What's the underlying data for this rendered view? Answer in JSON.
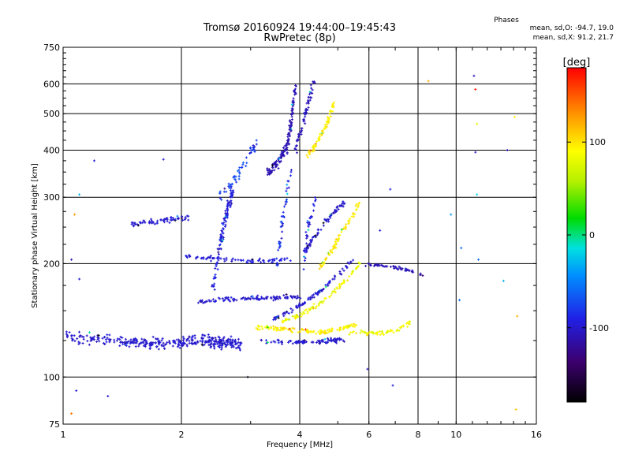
{
  "header": {
    "title_line1": "Tromsø 20160924 19:44:00–19:45:43",
    "title_line2": "RwPretec (8p)",
    "phase_title": "Phases",
    "phase_stat_o": "mean, sd,O: -94.7, 19.0",
    "phase_stat_x": "mean, sd,X:  91.2, 21.7"
  },
  "colorbar": {
    "label": "[deg]",
    "min": -180,
    "max": 180,
    "ticks": [
      {
        "value": 100,
        "label": "100"
      },
      {
        "value": 0,
        "label": "0"
      },
      {
        "value": -100,
        "label": "-100"
      }
    ]
  },
  "chart_data": {
    "type": "scatter",
    "xlabel": "Frequency [MHz]",
    "ylabel": "Stationary phase Virtual Height [km]",
    "xscale": "log",
    "yscale": "log",
    "xlim": [
      1,
      16
    ],
    "ylim": [
      75,
      750
    ],
    "grid": true,
    "color_encoding": "phase [deg]",
    "x_ticks": [
      {
        "value": 1,
        "label": "1"
      },
      {
        "value": 2,
        "label": "2"
      },
      {
        "value": 4,
        "label": "4"
      },
      {
        "value": 6,
        "label": "6"
      },
      {
        "value": 8,
        "label": "8"
      },
      {
        "value": 10,
        "label": "10"
      },
      {
        "value": 16,
        "label": "16"
      }
    ],
    "y_ticks": [
      {
        "value": 75,
        "label": "75"
      },
      {
        "value": 100,
        "label": "100"
      },
      {
        "value": 200,
        "label": "200"
      },
      {
        "value": 300,
        "label": "300"
      },
      {
        "value": 400,
        "label": "400"
      },
      {
        "value": 500,
        "label": "500"
      },
      {
        "value": 600,
        "label": "600"
      },
      {
        "value": 750,
        "label": "750"
      }
    ],
    "traces": [
      {
        "x": [
          1.02,
          1.2,
          1.45,
          1.7,
          1.95,
          2.2,
          2.45,
          2.65,
          2.85
        ],
        "y": [
          128,
          126,
          124,
          123,
          123,
          125,
          124,
          123,
          122
        ],
        "spread": 0.05,
        "n": 360,
        "phase_mean": -100,
        "phase_sd": 12
      },
      {
        "x": [
          2.2,
          2.5,
          2.8,
          3.1,
          3.4,
          3.7,
          4.0
        ],
        "y": [
          158,
          160,
          161,
          162,
          162,
          163,
          163
        ],
        "spread": 0.02,
        "n": 110,
        "phase_mean": -100,
        "phase_sd": 12
      },
      {
        "x": [
          1.5,
          1.7,
          1.9,
          2.1
        ],
        "y": [
          255,
          258,
          262,
          266
        ],
        "spread": 0.025,
        "n": 65,
        "phase_mean": -100,
        "phase_sd": 10
      },
      {
        "x": [
          2.05,
          2.3,
          2.6,
          2.9,
          3.2,
          3.5,
          3.8
        ],
        "y": [
          210,
          207,
          205,
          203,
          203,
          204,
          205
        ],
        "spread": 0.02,
        "n": 75,
        "phase_mean": -95,
        "phase_sd": 14
      },
      {
        "x": [
          2.4,
          2.5,
          2.6,
          2.7
        ],
        "y": [
          170,
          220,
          270,
          310
        ],
        "spread": 0.06,
        "n": 110,
        "phase_mean": -95,
        "phase_sd": 18
      },
      {
        "x": [
          2.5,
          2.7,
          2.9,
          3.1
        ],
        "y": [
          300,
          330,
          370,
          420
        ],
        "spread": 0.05,
        "n": 55,
        "phase_mean": -75,
        "phase_sd": 30
      },
      {
        "x": [
          3.3,
          3.5,
          3.7,
          3.8,
          3.9
        ],
        "y": [
          350,
          370,
          400,
          470,
          590
        ],
        "spread": 0.05,
        "n": 150,
        "phase_mean": -110,
        "phase_sd": 12
      },
      {
        "x": [
          3.9,
          4.05,
          4.2,
          4.35
        ],
        "y": [
          400,
          460,
          530,
          620
        ],
        "spread": 0.03,
        "n": 60,
        "phase_mean": -105,
        "phase_sd": 10
      },
      {
        "x": [
          4.2,
          4.45,
          4.7,
          4.9
        ],
        "y": [
          390,
          420,
          470,
          540
        ],
        "spread": 0.03,
        "n": 70,
        "phase_mean": 95,
        "phase_sd": 25
      },
      {
        "x": [
          3.1,
          3.5,
          3.9,
          4.3,
          4.7,
          5.1,
          5.6
        ],
        "y": [
          136,
          134,
          133,
          132,
          132,
          134,
          138
        ],
        "spread": 0.02,
        "n": 130,
        "phase_mean": 95,
        "phase_sd": 22
      },
      {
        "x": [
          3.2,
          3.6,
          4.0,
          4.4,
          4.8,
          5.2
        ],
        "y": [
          125,
          124,
          124,
          124,
          125,
          126
        ],
        "spread": 0.02,
        "n": 95,
        "phase_mean": -100,
        "phase_sd": 12
      },
      {
        "x": [
          3.4,
          3.8,
          4.2,
          4.6,
          5.0,
          5.5
        ],
        "y": [
          142,
          150,
          160,
          172,
          187,
          205
        ],
        "spread": 0.02,
        "n": 95,
        "phase_mean": -100,
        "phase_sd": 14
      },
      {
        "x": [
          3.6,
          4.0,
          4.4,
          4.8,
          5.2,
          5.7
        ],
        "y": [
          140,
          146,
          154,
          165,
          180,
          200
        ],
        "spread": 0.02,
        "n": 90,
        "phase_mean": 85,
        "phase_sd": 30
      },
      {
        "x": [
          4.0,
          4.3,
          4.6,
          4.9,
          5.2
        ],
        "y": [
          205,
          230,
          255,
          275,
          292
        ],
        "spread": 0.02,
        "n": 70,
        "phase_mean": -100,
        "phase_sd": 14
      },
      {
        "x": [
          4.5,
          4.8,
          5.1,
          5.4,
          5.7
        ],
        "y": [
          195,
          215,
          240,
          265,
          290
        ],
        "spread": 0.025,
        "n": 70,
        "phase_mean": 100,
        "phase_sd": 20
      },
      {
        "x": [
          5.8,
          6.3,
          6.8,
          7.3,
          7.8,
          8.2
        ],
        "y": [
          198,
          198,
          196,
          194,
          190,
          186
        ],
        "spread": 0.015,
        "n": 55,
        "phase_mean": -110,
        "phase_sd": 12
      },
      {
        "x": [
          5.3,
          5.9,
          6.5,
          7.1,
          7.6
        ],
        "y": [
          132,
          131,
          131,
          133,
          140
        ],
        "spread": 0.02,
        "n": 60,
        "phase_mean": 85,
        "phase_sd": 25
      },
      {
        "x": [
          3.5,
          3.6,
          3.7,
          3.8
        ],
        "y": [
          200,
          250,
          300,
          350
        ],
        "spread": 0.05,
        "n": 45,
        "phase_mean": -90,
        "phase_sd": 35
      },
      {
        "x": [
          4.1,
          4.2,
          4.4
        ],
        "y": [
          200,
          250,
          300
        ],
        "spread": 0.05,
        "n": 35,
        "phase_mean": -95,
        "phase_sd": 22
      }
    ],
    "outliers": [
      {
        "x": 9.7,
        "y": 270,
        "phase": -40
      },
      {
        "x": 10.3,
        "y": 220,
        "phase": -60
      },
      {
        "x": 11.1,
        "y": 630,
        "phase": -110
      },
      {
        "x": 11.2,
        "y": 580,
        "phase": 170
      },
      {
        "x": 11.3,
        "y": 470,
        "phase": 80
      },
      {
        "x": 11.2,
        "y": 395,
        "phase": -100
      },
      {
        "x": 11.3,
        "y": 305,
        "phase": -20
      },
      {
        "x": 11.4,
        "y": 205,
        "phase": -60
      },
      {
        "x": 13.5,
        "y": 400,
        "phase": -110
      },
      {
        "x": 13.2,
        "y": 180,
        "phase": -30
      },
      {
        "x": 14.1,
        "y": 490,
        "phase": 95
      },
      {
        "x": 14.3,
        "y": 145,
        "phase": 120
      },
      {
        "x": 14.2,
        "y": 82,
        "phase": 110
      },
      {
        "x": 8.5,
        "y": 610,
        "phase": 120
      },
      {
        "x": 6.4,
        "y": 245,
        "phase": -100
      },
      {
        "x": 6.8,
        "y": 315,
        "phase": -90
      },
      {
        "x": 6.9,
        "y": 95,
        "phase": -100
      },
      {
        "x": 1.05,
        "y": 80,
        "phase": 140
      },
      {
        "x": 1.08,
        "y": 92,
        "phase": -100
      },
      {
        "x": 1.3,
        "y": 89,
        "phase": -100
      },
      {
        "x": 1.07,
        "y": 270,
        "phase": 130
      },
      {
        "x": 1.1,
        "y": 305,
        "phase": -30
      },
      {
        "x": 1.2,
        "y": 375,
        "phase": -100
      },
      {
        "x": 1.8,
        "y": 378,
        "phase": -100
      },
      {
        "x": 1.05,
        "y": 205,
        "phase": -110
      },
      {
        "x": 1.1,
        "y": 182,
        "phase": -100
      },
      {
        "x": 2.95,
        "y": 100,
        "phase": -170
      },
      {
        "x": 5.95,
        "y": 105,
        "phase": -100
      },
      {
        "x": 10.2,
        "y": 160,
        "phase": -60
      }
    ]
  }
}
